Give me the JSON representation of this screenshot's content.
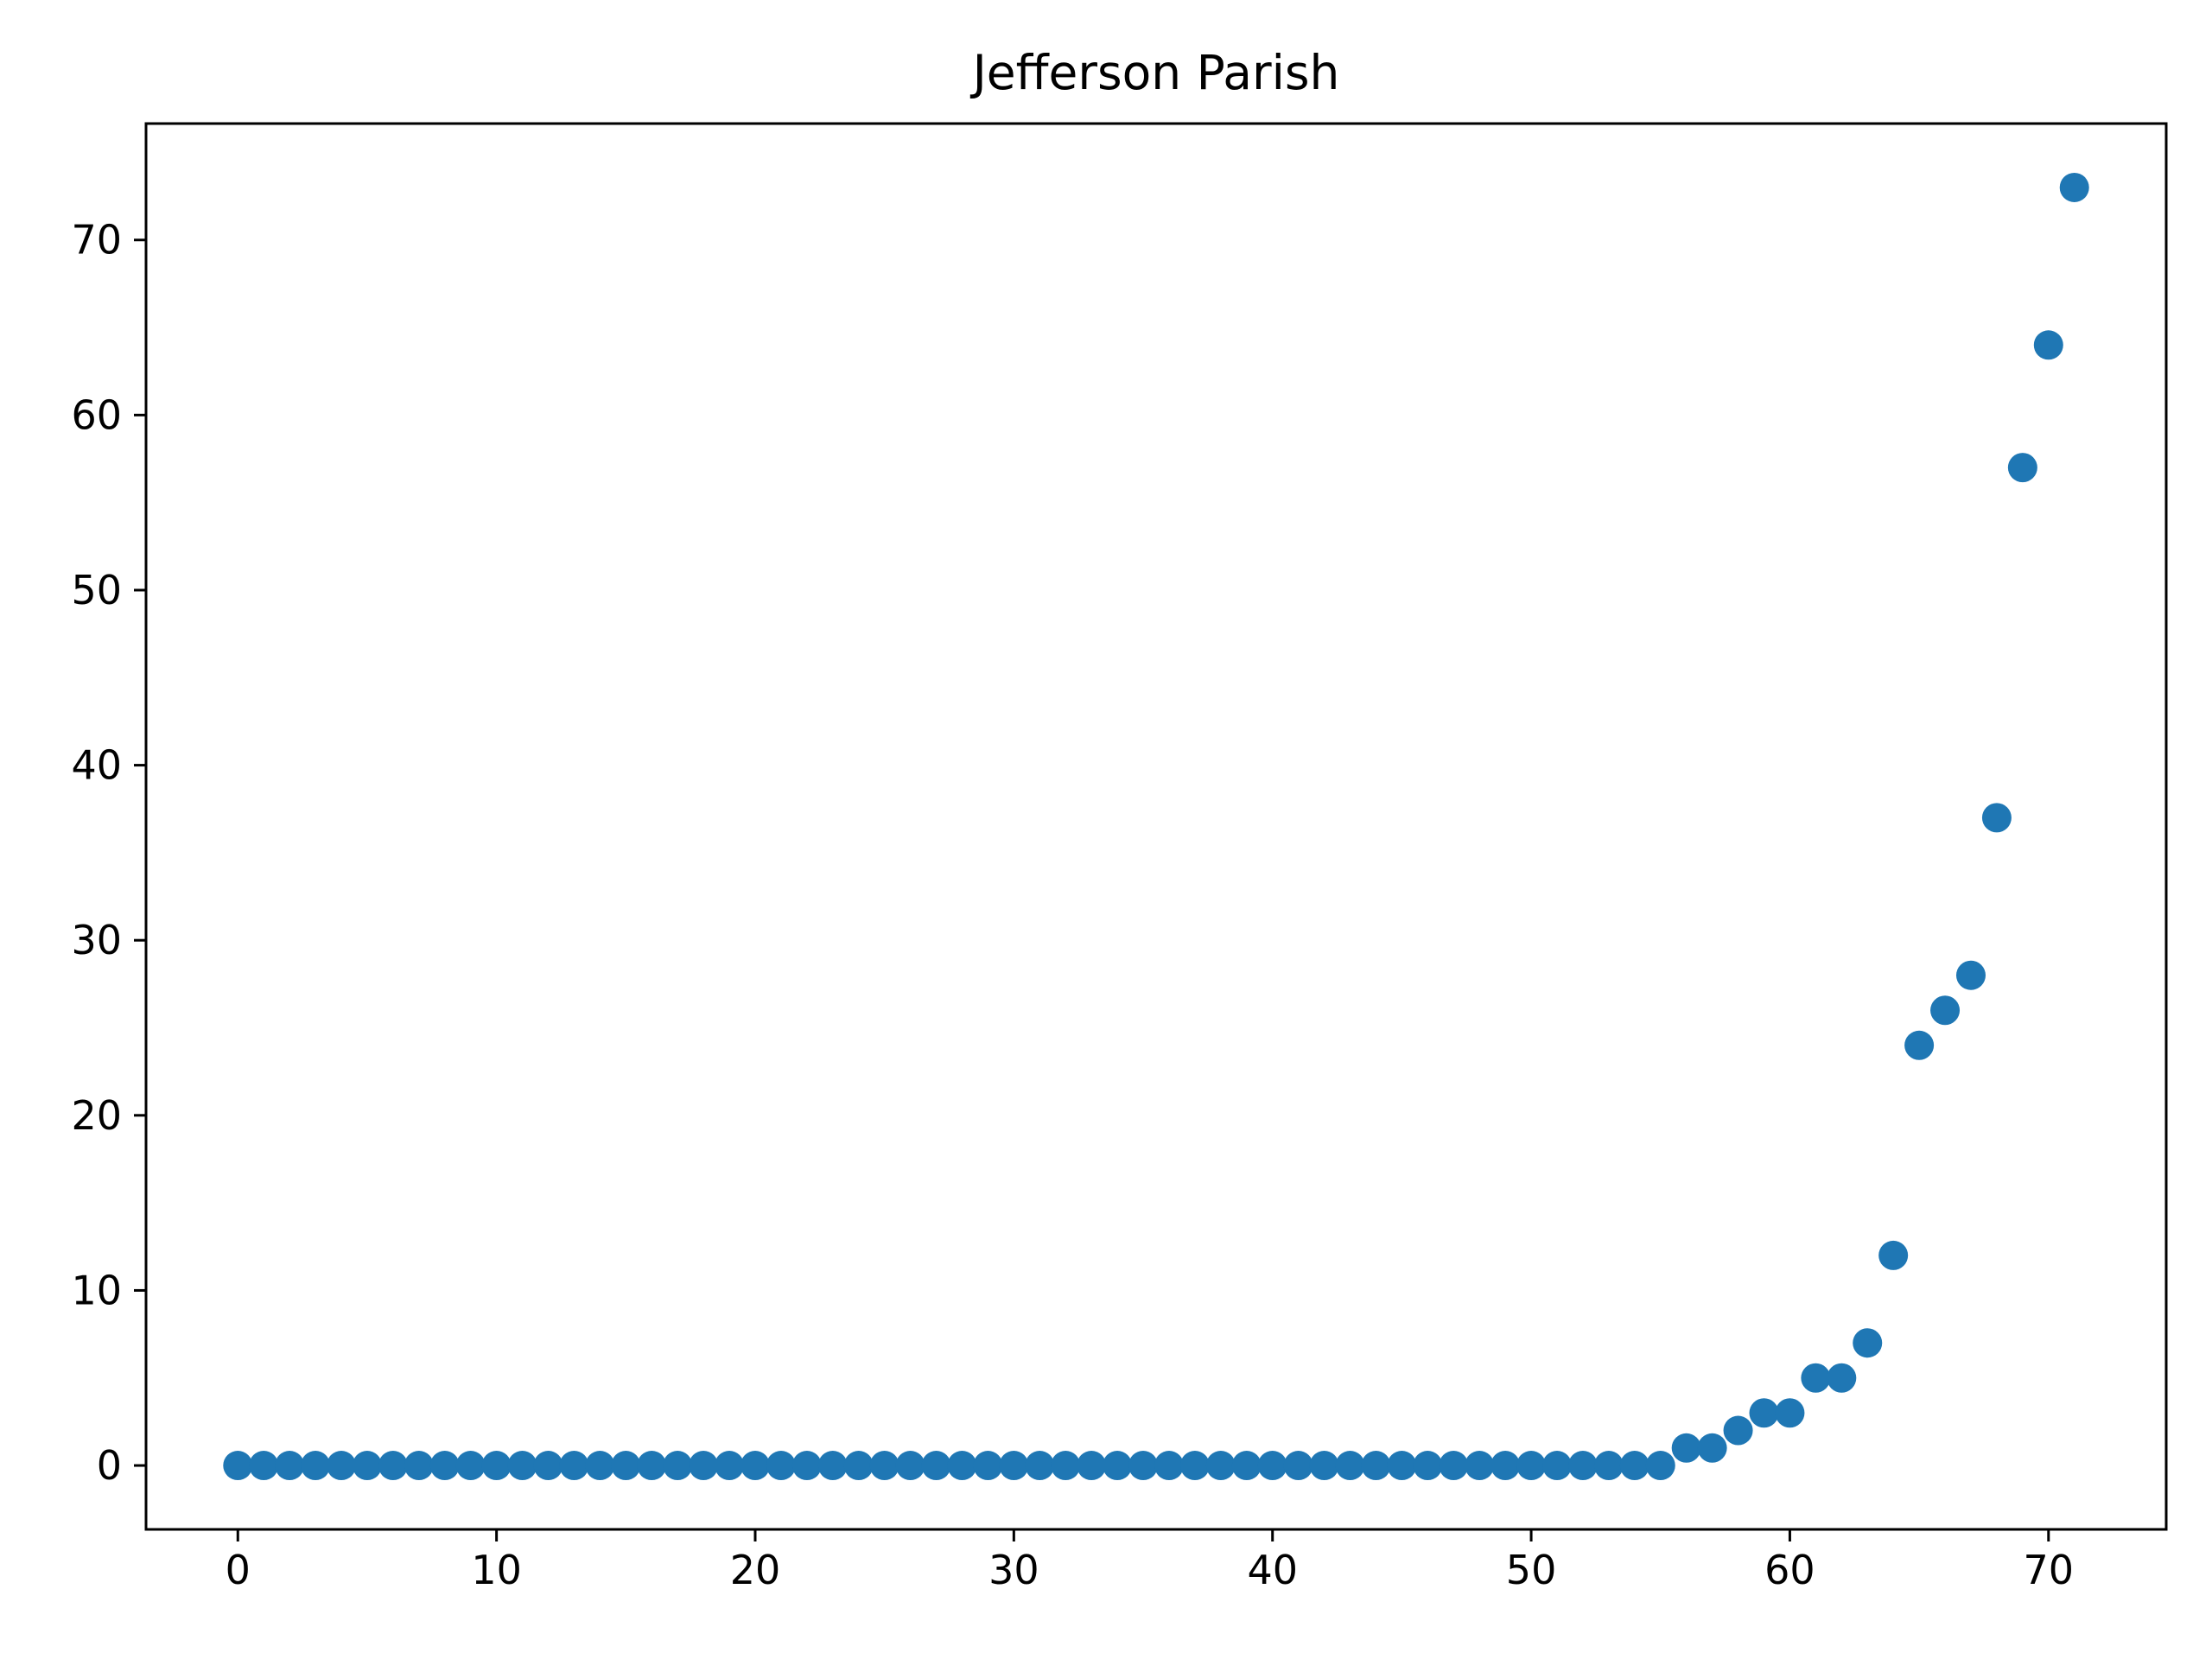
{
  "chart_data": {
    "type": "scatter",
    "title": "Jefferson Parish",
    "xlabel": "",
    "ylabel": "",
    "xlim": [
      -3.55,
      74.55
    ],
    "ylim": [
      -3.65,
      76.65
    ],
    "xticks": [
      0,
      10,
      20,
      30,
      40,
      50,
      60,
      70
    ],
    "yticks": [
      0,
      10,
      20,
      30,
      40,
      50,
      60,
      70
    ],
    "grid": false,
    "color": "#1f77b4",
    "series": [
      {
        "x": [
          0,
          1,
          2,
          3,
          4,
          5,
          6,
          7,
          8,
          9,
          10,
          11,
          12,
          13,
          14,
          15,
          16,
          17,
          18,
          19,
          20,
          21,
          22,
          23,
          24,
          25,
          26,
          27,
          28,
          29,
          30,
          31,
          32,
          33,
          34,
          35,
          36,
          37,
          38,
          39,
          40,
          41,
          42,
          43,
          44,
          45,
          46,
          47,
          48,
          49,
          50,
          51,
          52,
          53,
          54,
          55,
          56,
          57,
          58,
          59,
          60,
          61,
          62,
          63,
          64,
          65,
          66,
          67,
          68,
          69,
          70,
          71
        ],
        "y": [
          0,
          0,
          0,
          0,
          0,
          0,
          0,
          0,
          0,
          0,
          0,
          0,
          0,
          0,
          0,
          0,
          0,
          0,
          0,
          0,
          0,
          0,
          0,
          0,
          0,
          0,
          0,
          0,
          0,
          0,
          0,
          0,
          0,
          0,
          0,
          0,
          0,
          0,
          0,
          0,
          0,
          0,
          0,
          0,
          0,
          0,
          0,
          0,
          0,
          0,
          0,
          0,
          0,
          0,
          0,
          0,
          1,
          1,
          2,
          3,
          3,
          5,
          5,
          7,
          12,
          24,
          26,
          28,
          37,
          57,
          64,
          73
        ]
      }
    ]
  }
}
